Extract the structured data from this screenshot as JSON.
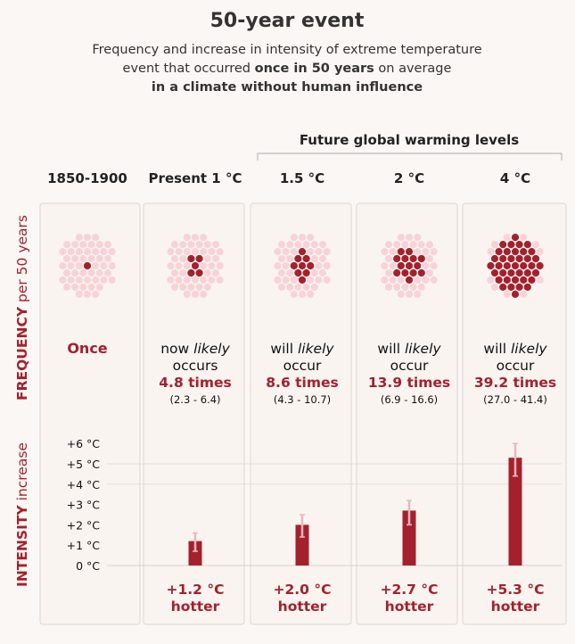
{
  "title": "50-year event",
  "subtitle": {
    "line1": "Frequency and increase in intensity of extreme temperature",
    "line2_pre": "event that occurred ",
    "line2_bold": "once in 50 years",
    "line2_post": " on average",
    "line3": "in a climate without human influence"
  },
  "future_header": "Future global warming levels",
  "side_labels": {
    "frequency_bold": "FREQUENCY",
    "frequency_rest": " per 50 years",
    "intensity_bold": "INTENSITY",
    "intensity_rest": " increase"
  },
  "colors": {
    "accent": "#a3212d",
    "dot_light": "#f7d3d8",
    "panel_bg": "#faf4f1",
    "panel_border": "#ddd6d2",
    "bar": "#a3212d",
    "error_bar": "#e9b8bb"
  },
  "intensity_unit": "°C",
  "chart_data": {
    "type": "bar",
    "title": "50-year event",
    "categories": [
      "1850-1900",
      "Present 1 °C",
      "1.5 °C",
      "2 °C",
      "4 °C"
    ],
    "frequency": {
      "series_name": "FREQUENCY per 50 years",
      "total_dots": 50,
      "values": [
        1,
        4.8,
        8.6,
        13.9,
        39.2
      ],
      "ranges": [
        null,
        [
          2.3,
          6.4
        ],
        [
          4.3,
          10.7
        ],
        [
          6.9,
          16.6
        ],
        [
          27.0,
          41.4
        ]
      ]
    },
    "intensity": {
      "series_name": "INTENSITY increase",
      "values": [
        null,
        1.2,
        2.0,
        2.7,
        5.3
      ],
      "error_low": [
        null,
        0.7,
        1.4,
        2.0,
        4.4
      ],
      "error_high": [
        null,
        1.6,
        2.5,
        3.2,
        6.0
      ],
      "ylim": [
        0,
        6
      ],
      "yticks": [
        0,
        1,
        2,
        3,
        4,
        5,
        6
      ],
      "ytick_labels": [
        "0 °C",
        "+1 °C",
        "+2 °C",
        "+3 °C",
        "+4 °C",
        "+5 °C",
        "+6 °C"
      ]
    },
    "columns": [
      {
        "label": "1850-1900",
        "freq_lines": [
          "Once"
        ],
        "freq_value": "",
        "range": "",
        "intensity_label": "",
        "hotter": ""
      },
      {
        "label": "Present 1 °C",
        "freq_lines": [
          "now likely",
          "occurs"
        ],
        "freq_italic_word": "likely",
        "freq_value": "4.8 times",
        "range": "(2.3 - 6.4)",
        "intensity_label": "+1.2 °C",
        "hotter": "hotter"
      },
      {
        "label": "1.5 °C",
        "freq_lines": [
          "will likely",
          "occur"
        ],
        "freq_italic_word": "likely",
        "freq_value": "8.6 times",
        "range": "(4.3 - 10.7)",
        "intensity_label": "+2.0 °C",
        "hotter": "hotter"
      },
      {
        "label": "2 °C",
        "freq_lines": [
          "will likely",
          "occur"
        ],
        "freq_italic_word": "likely",
        "freq_value": "13.9 times",
        "range": "(6.9 - 16.6)",
        "intensity_label": "+2.7 °C",
        "hotter": "hotter"
      },
      {
        "label": "4 °C",
        "freq_lines": [
          "will likely",
          "occur"
        ],
        "freq_italic_word": "likely",
        "freq_value": "39.2 times",
        "range": "(27.0 - 41.4)",
        "intensity_label": "+5.3 °C",
        "hotter": "hotter"
      }
    ]
  }
}
